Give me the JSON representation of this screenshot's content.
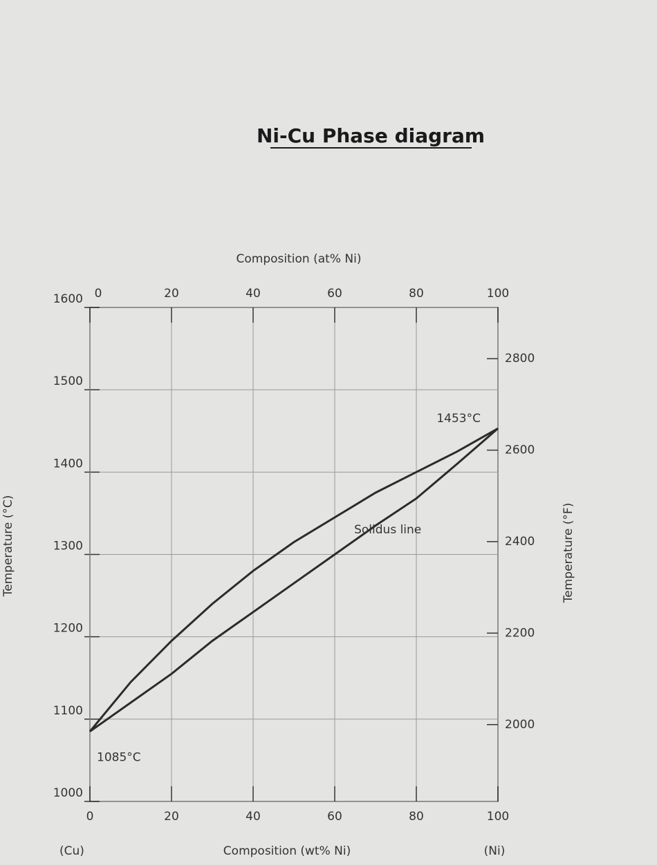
{
  "chart_data": {
    "type": "line",
    "title": "Ni-Cu Phase diagram",
    "x_label": "Composition (wt% Ni)",
    "x2_label": "Composition (at% Ni)",
    "y_label": "Temperature (°C)",
    "y2_label": "Temperature (°F)",
    "left_end_label": "(Cu)",
    "right_end_label": "(Ni)",
    "x": [
      0,
      10,
      20,
      30,
      40,
      50,
      60,
      70,
      80,
      90,
      100
    ],
    "series": [
      {
        "color": "#2b2b2b",
        "values": [
          1085,
          1145,
          1195,
          1240,
          1280,
          1315,
          1345,
          1375,
          1400,
          1425,
          1453
        ],
        "value_labels": [
          "1085°C",
          null,
          null,
          null,
          null,
          null,
          null,
          null,
          null,
          null,
          "1453°C"
        ]
      },
      {
        "name": "Solidus line",
        "color": "#2b2b2b",
        "values": [
          1085,
          1120,
          1155,
          1195,
          1230,
          1265,
          1300,
          1335,
          1368,
          1410,
          1453
        ]
      }
    ],
    "xlim": [
      0,
      100
    ],
    "xticks": [
      0,
      20,
      40,
      60,
      80,
      100
    ],
    "x2lim": [
      0,
      100
    ],
    "x2ticks": [
      0,
      20,
      40,
      60,
      80,
      100
    ],
    "ylim": [
      1000,
      1600
    ],
    "yticks": [
      1000,
      1100,
      1200,
      1300,
      1400,
      1500,
      1600
    ],
    "y2lim": [
      1832,
      2912
    ],
    "y2ticks": [
      2000,
      2200,
      2400,
      2600,
      2800
    ],
    "grid": true
  }
}
